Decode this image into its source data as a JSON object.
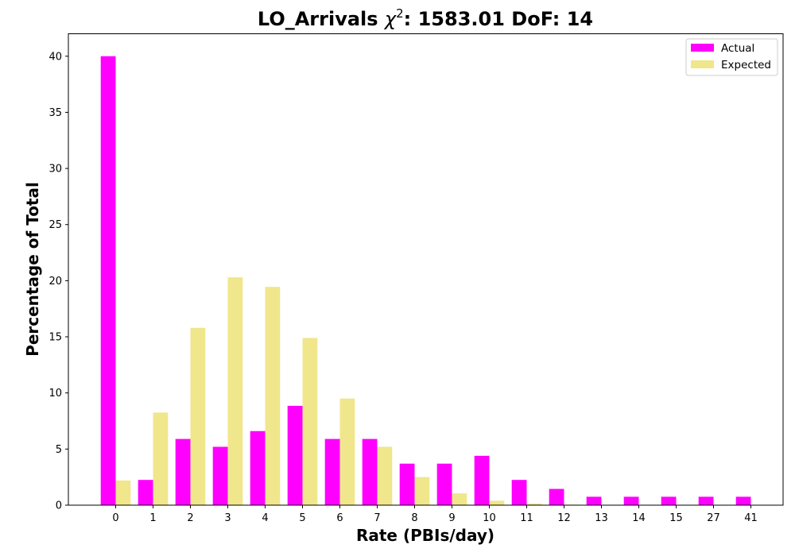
{
  "chart_data": {
    "type": "bar",
    "title_main": "LO_Arrivals ",
    "title_chi": "χ",
    "title_sup": "2",
    "title_rest": ": 1583.01 DoF: 14",
    "xlabel": "Rate (PBIs/day)",
    "ylabel": "Percentage of Total",
    "categories": [
      "0",
      "1",
      "2",
      "3",
      "4",
      "5",
      "6",
      "7",
      "8",
      "9",
      "10",
      "11",
      "12",
      "13",
      "14",
      "15",
      "27",
      "41"
    ],
    "ylim": [
      0,
      42
    ],
    "yticks": [
      0,
      5,
      10,
      15,
      20,
      25,
      30,
      35,
      40
    ],
    "legend_position": "top-right",
    "series": [
      {
        "name": "Actual",
        "color": "#ff00ff",
        "values": [
          40.0,
          2.25,
          5.9,
          5.2,
          6.6,
          8.85,
          5.9,
          5.9,
          3.7,
          3.7,
          4.4,
          2.25,
          1.45,
          0.75,
          0.75,
          0.75,
          0.75,
          0.75
        ]
      },
      {
        "name": "Expected",
        "color": "#f0e68c",
        "values": [
          2.2,
          8.25,
          15.8,
          20.3,
          19.45,
          14.9,
          9.5,
          5.2,
          2.5,
          1.05,
          0.4,
          0.15,
          0.05,
          0.0,
          0.0,
          0.0,
          0.0,
          0.0
        ]
      }
    ]
  }
}
